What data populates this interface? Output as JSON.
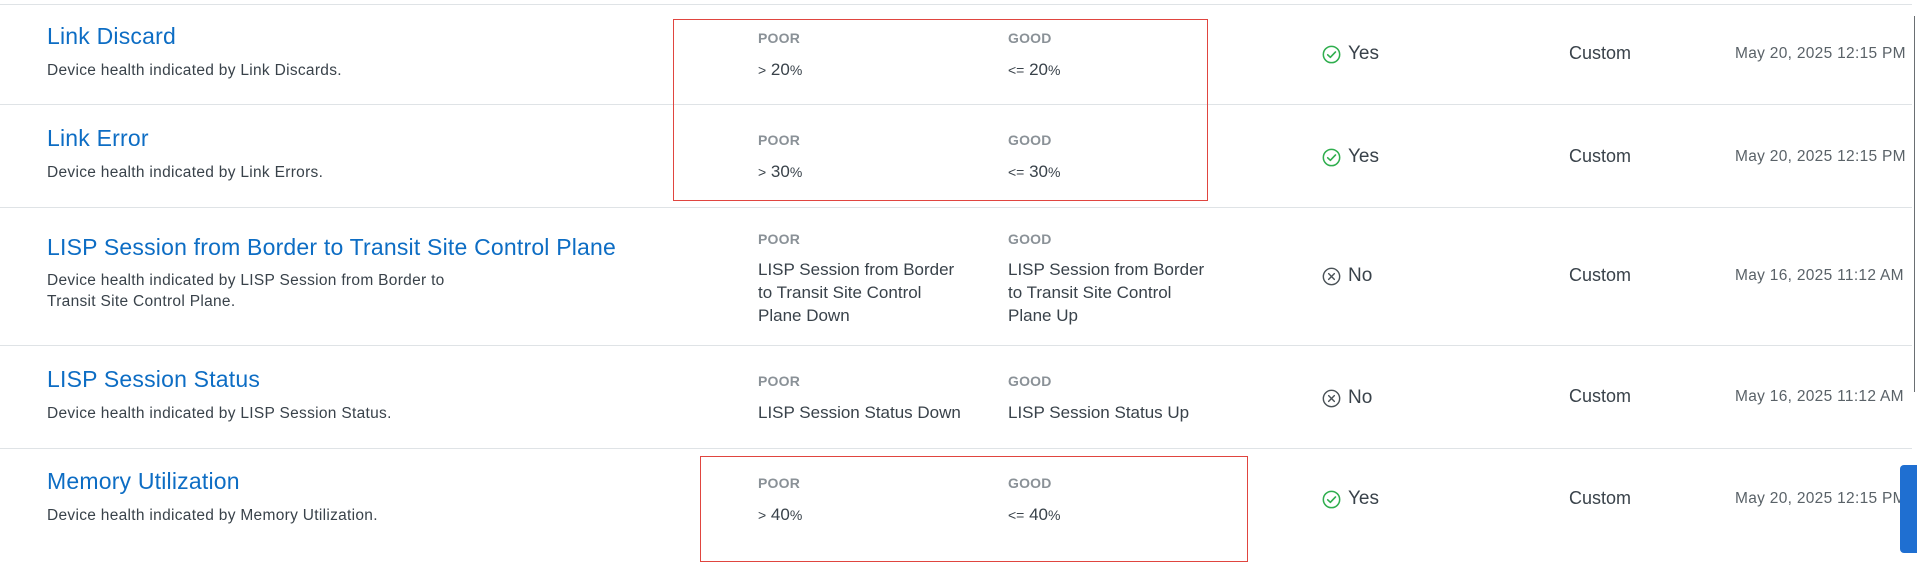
{
  "labels": {
    "poor": "POOR",
    "good": "GOOD"
  },
  "rows": [
    {
      "title": "Link Discard",
      "description": "Device health indicated by Link Discards.",
      "poor_op": ">",
      "poor_num": "20",
      "poor_unit": "%",
      "good_op": "<=",
      "good_num": "20",
      "good_unit": "%",
      "status": "Yes",
      "status_icon": "check-circle-icon",
      "type": "Custom",
      "date": "May 20, 2025 12:15 PM"
    },
    {
      "title": "Link Error",
      "description": "Device health indicated by Link Errors.",
      "poor_op": ">",
      "poor_num": "30",
      "poor_unit": "%",
      "good_op": "<=",
      "good_num": "30",
      "good_unit": "%",
      "status": "Yes",
      "status_icon": "check-circle-icon",
      "type": "Custom",
      "date": "May 20, 2025 12:15 PM"
    },
    {
      "title": "LISP Session from Border to Transit Site Control Plane",
      "description_line1": "Device health indicated by LISP Session from Border to",
      "description_line2": "Transit Site Control Plane.",
      "poor_line1": "LISP Session from Border",
      "poor_line2": "to Transit Site Control",
      "poor_line3": "Plane Down",
      "good_line1": "LISP Session from Border",
      "good_line2": "to Transit Site Control",
      "good_line3": "Plane Up",
      "status": "No",
      "status_icon": "x-circle-icon",
      "type": "Custom",
      "date": "May 16, 2025 11:12 AM"
    },
    {
      "title": "LISP Session Status",
      "description": "Device health indicated by LISP Session Status.",
      "poor_text": "LISP Session Status Down",
      "good_text": "LISP Session Status Up",
      "status": "No",
      "status_icon": "x-circle-icon",
      "type": "Custom",
      "date": "May 16, 2025 11:12 AM"
    },
    {
      "title": "Memory Utilization",
      "description": "Device health indicated by Memory Utilization.",
      "poor_op": ">",
      "poor_num": "40",
      "poor_unit": "%",
      "good_op": "<=",
      "good_num": "40",
      "good_unit": "%",
      "status": "Yes",
      "status_icon": "check-circle-icon",
      "type": "Custom",
      "date": "May 20, 2025 12:15 PM"
    }
  ],
  "colors": {
    "link": "#0d6dc4",
    "check": "#2fae4e",
    "highlight": "#e0453f",
    "side_tab": "#1f6fd1"
  }
}
